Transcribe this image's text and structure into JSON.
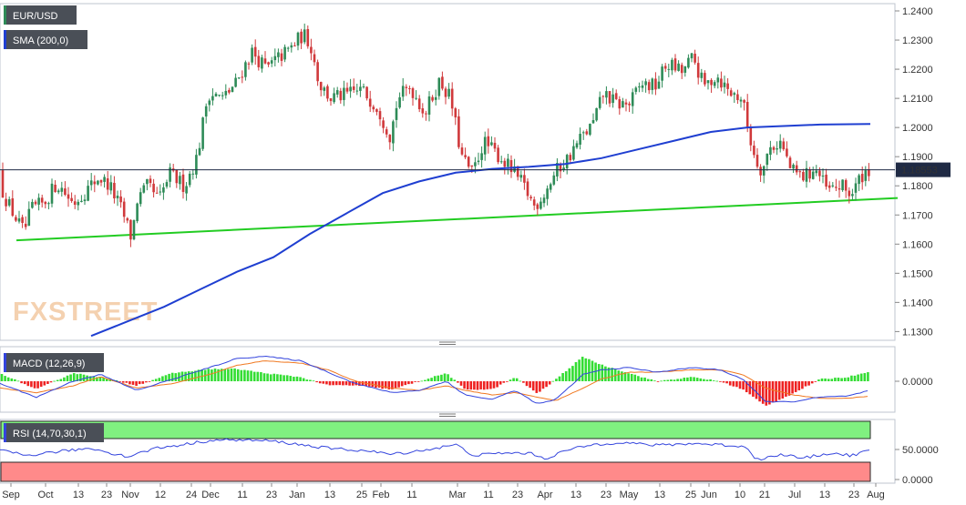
{
  "chart_data": {
    "type": "candlestick",
    "symbol_label": "EUR/USD",
    "brand": "FXSTREET",
    "colors": {
      "up": "#2e8b57",
      "down": "#d0393b",
      "sma": "#1f3fd1",
      "trendline": "#22cc22",
      "macd_line": "#3344dd",
      "signal_line": "#f07820",
      "hist_up": "#33dd33",
      "hist_down": "#ee2222",
      "rsi_over": "#80f080",
      "rsi_under": "#ff8a8a",
      "rsi_line": "#3344dd",
      "current_tag": "#1f2a44"
    },
    "x_labels": [
      "Sep",
      "Oct",
      "13",
      "23",
      "Nov",
      "12",
      "24",
      "Dec",
      "11",
      "23",
      "Jan",
      "13",
      "25",
      "Feb",
      "11",
      "Mar",
      "11",
      "23",
      "Apr",
      "13",
      "23",
      "May",
      "13",
      "25",
      "Jun",
      "10",
      "21",
      "Jul",
      "13",
      "23",
      "Aug"
    ],
    "anchors": [
      [
        0,
        1.185
      ],
      [
        4,
        1.18
      ],
      [
        14,
        1.173
      ],
      [
        26,
        1.166
      ],
      [
        30,
        1.164
      ],
      [
        38,
        1.172
      ],
      [
        52,
        1.174
      ],
      [
        66,
        1.181
      ],
      [
        84,
        1.174
      ],
      [
        100,
        1.179
      ],
      [
        112,
        1.183
      ],
      [
        124,
        1.18
      ],
      [
        138,
        1.171
      ],
      [
        148,
        1.162
      ],
      [
        154,
        1.175
      ],
      [
        166,
        1.18
      ],
      [
        178,
        1.175
      ],
      [
        190,
        1.184
      ],
      [
        206,
        1.18
      ],
      [
        220,
        1.19
      ],
      [
        232,
        1.212
      ],
      [
        248,
        1.21
      ],
      [
        262,
        1.215
      ],
      [
        280,
        1.226
      ],
      [
        296,
        1.22
      ],
      [
        306,
        1.223
      ],
      [
        322,
        1.227
      ],
      [
        336,
        1.232
      ],
      [
        344,
        1.229
      ],
      [
        354,
        1.215
      ],
      [
        366,
        1.21
      ],
      [
        382,
        1.211
      ],
      [
        400,
        1.213
      ],
      [
        418,
        1.207
      ],
      [
        432,
        1.197
      ],
      [
        440,
        1.21
      ],
      [
        454,
        1.214
      ],
      [
        470,
        1.205
      ],
      [
        486,
        1.216
      ],
      [
        498,
        1.21
      ],
      [
        510,
        1.19
      ],
      [
        522,
        1.184
      ],
      [
        534,
        1.195
      ],
      [
        552,
        1.19
      ],
      [
        566,
        1.185
      ],
      [
        578,
        1.18
      ],
      [
        590,
        1.173
      ],
      [
        602,
        1.178
      ],
      [
        614,
        1.185
      ],
      [
        628,
        1.19
      ],
      [
        640,
        1.196
      ],
      [
        654,
        1.201
      ],
      [
        666,
        1.212
      ],
      [
        680,
        1.208
      ],
      [
        694,
        1.208
      ],
      [
        708,
        1.215
      ],
      [
        722,
        1.214
      ],
      [
        736,
        1.222
      ],
      [
        752,
        1.219
      ],
      [
        764,
        1.224
      ],
      [
        776,
        1.214
      ],
      [
        790,
        1.218
      ],
      [
        804,
        1.212
      ],
      [
        818,
        1.21
      ],
      [
        826,
        1.197
      ],
      [
        832,
        1.19
      ],
      [
        840,
        1.185
      ],
      [
        848,
        1.193
      ],
      [
        860,
        1.195
      ],
      [
        872,
        1.185
      ],
      [
        886,
        1.183
      ],
      [
        898,
        1.186
      ],
      [
        912,
        1.178
      ],
      [
        926,
        1.18
      ],
      [
        938,
        1.177
      ],
      [
        950,
        1.184
      ],
      [
        956,
        1.1855
      ]
    ],
    "sma": {
      "label": "SMA (200,0)",
      "points": [
        [
          100,
          1.1285
        ],
        [
          140,
          1.1335
        ],
        [
          180,
          1.1385
        ],
        [
          220,
          1.1445
        ],
        [
          260,
          1.1505
        ],
        [
          300,
          1.1555
        ],
        [
          340,
          1.1635
        ],
        [
          380,
          1.1705
        ],
        [
          420,
          1.1775
        ],
        [
          460,
          1.1815
        ],
        [
          500,
          1.1845
        ],
        [
          540,
          1.1858
        ],
        [
          580,
          1.1865
        ],
        [
          620,
          1.1875
        ],
        [
          660,
          1.1895
        ],
        [
          700,
          1.1925
        ],
        [
          740,
          1.1955
        ],
        [
          780,
          1.1985
        ],
        [
          820,
          1.2
        ],
        [
          860,
          1.2005
        ],
        [
          900,
          1.201
        ],
        [
          955,
          1.2012
        ]
      ]
    },
    "trendline": {
      "points": [
        [
          18,
          1.1613
        ],
        [
          985,
          1.1758
        ]
      ]
    },
    "current_price": {
      "value": 1.1855,
      "label": "1.18553"
    },
    "y_price": {
      "min": 1.127,
      "max": 1.2425,
      "ticks": [
        "1.2400",
        "1.2300",
        "1.2200",
        "1.2100",
        "1.2000",
        "1.1900",
        "1.1800",
        "1.1700",
        "1.1600",
        "1.1500",
        "1.1400",
        "1.1300"
      ],
      "tick_values": [
        1.24,
        1.23,
        1.22,
        1.21,
        1.2,
        1.19,
        1.18,
        1.17,
        1.16,
        1.15,
        1.14,
        1.13
      ]
    },
    "macd": {
      "label": "MACD (12,26,9)",
      "tick": "0.0000",
      "macd_anchors": [
        [
          0,
          -0.1
        ],
        [
          40,
          -0.7
        ],
        [
          80,
          0.0
        ],
        [
          110,
          0.3
        ],
        [
          150,
          -0.4
        ],
        [
          190,
          0.1
        ],
        [
          230,
          0.6
        ],
        [
          260,
          1.0
        ],
        [
          290,
          1.1
        ],
        [
          330,
          0.9
        ],
        [
          360,
          0.4
        ],
        [
          390,
          -0.1
        ],
        [
          430,
          -0.5
        ],
        [
          460,
          -0.4
        ],
        [
          490,
          0.0
        ],
        [
          510,
          -0.6
        ],
        [
          540,
          -0.8
        ],
        [
          565,
          -0.4
        ],
        [
          590,
          -1.0
        ],
        [
          610,
          -0.8
        ],
        [
          640,
          0.3
        ],
        [
          660,
          0.5
        ],
        [
          690,
          0.6
        ],
        [
          720,
          0.4
        ],
        [
          760,
          0.6
        ],
        [
          790,
          0.5
        ],
        [
          815,
          0.1
        ],
        [
          840,
          -0.9
        ],
        [
          870,
          -0.9
        ],
        [
          900,
          -0.7
        ],
        [
          930,
          -0.65
        ],
        [
          955,
          -0.4
        ]
      ],
      "signal_anchors": [
        [
          0,
          -0.3
        ],
        [
          40,
          -0.5
        ],
        [
          80,
          -0.2
        ],
        [
          110,
          0.2
        ],
        [
          150,
          -0.3
        ],
        [
          190,
          -0.1
        ],
        [
          230,
          0.3
        ],
        [
          260,
          0.7
        ],
        [
          290,
          0.9
        ],
        [
          330,
          0.8
        ],
        [
          360,
          0.5
        ],
        [
          390,
          0.0
        ],
        [
          430,
          -0.3
        ],
        [
          460,
          -0.4
        ],
        [
          490,
          -0.2
        ],
        [
          510,
          -0.4
        ],
        [
          540,
          -0.6
        ],
        [
          565,
          -0.5
        ],
        [
          590,
          -0.7
        ],
        [
          610,
          -0.85
        ],
        [
          640,
          -0.3
        ],
        [
          660,
          0.1
        ],
        [
          690,
          0.4
        ],
        [
          720,
          0.4
        ],
        [
          760,
          0.5
        ],
        [
          790,
          0.5
        ],
        [
          815,
          0.3
        ],
        [
          840,
          -0.3
        ],
        [
          870,
          -0.6
        ],
        [
          900,
          -0.75
        ],
        [
          930,
          -0.75
        ],
        [
          955,
          -0.65
        ]
      ]
    },
    "rsi": {
      "label": "RSI (14,70,30,1)",
      "ticks": [
        "50.0000",
        "0.0000"
      ],
      "anchors": [
        [
          0,
          48
        ],
        [
          30,
          40
        ],
        [
          60,
          46
        ],
        [
          100,
          52
        ],
        [
          140,
          38
        ],
        [
          170,
          52
        ],
        [
          200,
          58
        ],
        [
          230,
          65
        ],
        [
          260,
          66
        ],
        [
          300,
          64
        ],
        [
          330,
          58
        ],
        [
          360,
          52
        ],
        [
          400,
          48
        ],
        [
          430,
          42
        ],
        [
          470,
          50
        ],
        [
          500,
          58
        ],
        [
          520,
          40
        ],
        [
          550,
          44
        ],
        [
          580,
          44
        ],
        [
          600,
          35
        ],
        [
          620,
          48
        ],
        [
          650,
          58
        ],
        [
          680,
          62
        ],
        [
          720,
          57
        ],
        [
          760,
          60
        ],
        [
          790,
          58
        ],
        [
          820,
          54
        ],
        [
          830,
          33
        ],
        [
          860,
          42
        ],
        [
          880,
          35
        ],
        [
          910,
          44
        ],
        [
          935,
          40
        ],
        [
          956,
          50
        ]
      ]
    }
  }
}
